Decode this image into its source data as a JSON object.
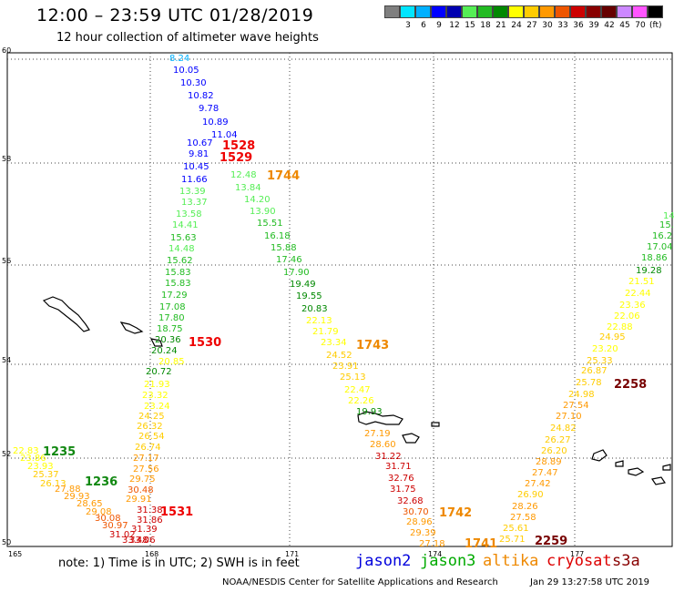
{
  "header": {
    "title": "12:00 – 23:59 UTC 01/28/2019",
    "subtitle": "12 hour collection of altimeter wave heights"
  },
  "legend": {
    "colors": [
      "#7f7f7f",
      "#00e5ff",
      "#00b0ff",
      "#0000ff",
      "#0000b0",
      "#55ee55",
      "#22bb22",
      "#008800",
      "#ffff00",
      "#ffcc00",
      "#ff9900",
      "#ee5500",
      "#cc0000",
      "#880000",
      "#660000",
      "#cc88ff",
      "#ff55ff",
      "#000000"
    ],
    "ticks": [
      "3",
      "6",
      "9",
      "12",
      "15",
      "18",
      "21",
      "24",
      "27",
      "30",
      "33",
      "36",
      "39",
      "42",
      "45",
      "70"
    ],
    "unit": "(ft)"
  },
  "map": {
    "lon_labels": [
      "165",
      "168",
      "171",
      "174",
      "177"
    ],
    "lat_labels": [
      "50",
      "52",
      "54",
      "56",
      "58",
      "60"
    ],
    "icon": "coastline-shapes"
  },
  "points": [
    {
      "t": "8.24",
      "c": "#00b0ff"
    },
    {
      "t": "10.05",
      "c": "#0000ff"
    },
    {
      "t": "10.30",
      "c": "#0000ff"
    },
    {
      "t": "10.82",
      "c": "#0000ff"
    },
    {
      "t": "9.78",
      "c": "#0000ff"
    },
    {
      "t": "10.89",
      "c": "#0000ff"
    },
    {
      "t": "11.04",
      "c": "#0000ff"
    },
    {
      "t": "10.67",
      "c": "#0000ff"
    },
    {
      "t": "9.81",
      "c": "#0000ff"
    },
    {
      "t": "10.45",
      "c": "#0000ff"
    },
    {
      "t": "11.66",
      "c": "#0000ff"
    },
    {
      "t": "13.39",
      "c": "#55ee55"
    },
    {
      "t": "13.37",
      "c": "#55ee55"
    },
    {
      "t": "13.58",
      "c": "#55ee55"
    },
    {
      "t": "14.41",
      "c": "#55ee55"
    },
    {
      "t": "15.63",
      "c": "#22bb22"
    },
    {
      "t": "14.48",
      "c": "#55ee55"
    },
    {
      "t": "15.62",
      "c": "#22bb22"
    },
    {
      "t": "15.83",
      "c": "#22bb22"
    },
    {
      "t": "15.83",
      "c": "#22bb22"
    },
    {
      "t": "17.29",
      "c": "#22bb22"
    },
    {
      "t": "17.08",
      "c": "#22bb22"
    },
    {
      "t": "17.80",
      "c": "#22bb22"
    },
    {
      "t": "18.75",
      "c": "#22bb22"
    },
    {
      "t": "20.36",
      "c": "#008800"
    },
    {
      "t": "20.24",
      "c": "#008800"
    },
    {
      "t": "20.85",
      "c": "#ffff00"
    },
    {
      "t": "20.72",
      "c": "#008800"
    },
    {
      "t": "21.93",
      "c": "#ffff00"
    },
    {
      "t": "23.32",
      "c": "#ffff00"
    },
    {
      "t": "23.24",
      "c": "#ffff00"
    },
    {
      "t": "24.25",
      "c": "#ffcc00"
    },
    {
      "t": "26.32",
      "c": "#ffcc00"
    },
    {
      "t": "26.54",
      "c": "#ffcc00"
    },
    {
      "t": "26.74",
      "c": "#ffcc00"
    },
    {
      "t": "27.17",
      "c": "#ff9900"
    },
    {
      "t": "27.56",
      "c": "#ff9900"
    },
    {
      "t": "29.75",
      "c": "#ff9900"
    },
    {
      "t": "30.48",
      "c": "#ee5500"
    },
    {
      "t": "29.91",
      "c": "#ff9900"
    },
    {
      "t": "31.38",
      "c": "#cc0000"
    },
    {
      "t": "31.86",
      "c": "#cc0000"
    },
    {
      "t": "31.39",
      "c": "#cc0000"
    },
    {
      "t": "33.48",
      "c": "#cc0000"
    },
    {
      "t": "33.06",
      "c": "#cc0000"
    },
    {
      "t": "12.48",
      "c": "#55ee55"
    },
    {
      "t": "13.84",
      "c": "#55ee55"
    },
    {
      "t": "14.20",
      "c": "#55ee55"
    },
    {
      "t": "13.90",
      "c": "#55ee55"
    },
    {
      "t": "15.51",
      "c": "#22bb22"
    },
    {
      "t": "16.18",
      "c": "#22bb22"
    },
    {
      "t": "15.88",
      "c": "#22bb22"
    },
    {
      "t": "17.46",
      "c": "#22bb22"
    },
    {
      "t": "17.90",
      "c": "#22bb22"
    },
    {
      "t": "19.49",
      "c": "#008800"
    },
    {
      "t": "19.55",
      "c": "#008800"
    },
    {
      "t": "20.83",
      "c": "#008800"
    },
    {
      "t": "22.13",
      "c": "#ffff00"
    },
    {
      "t": "21.79",
      "c": "#ffff00"
    },
    {
      "t": "23.34",
      "c": "#ffff00"
    },
    {
      "t": "24.52",
      "c": "#ffcc00"
    },
    {
      "t": "23.91",
      "c": "#ffcc00"
    },
    {
      "t": "25.13",
      "c": "#ffcc00"
    },
    {
      "t": "22.47",
      "c": "#ffff00"
    },
    {
      "t": "22.26",
      "c": "#ffff00"
    },
    {
      "t": "19.93",
      "c": "#008800"
    },
    {
      "t": "27.19",
      "c": "#ff9900"
    },
    {
      "t": "28.60",
      "c": "#ff9900"
    },
    {
      "t": "31.22",
      "c": "#cc0000"
    },
    {
      "t": "31.71",
      "c": "#cc0000"
    },
    {
      "t": "32.76",
      "c": "#cc0000"
    },
    {
      "t": "31.75",
      "c": "#cc0000"
    },
    {
      "t": "32.68",
      "c": "#cc0000"
    },
    {
      "t": "30.70",
      "c": "#ee5500"
    },
    {
      "t": "28.96",
      "c": "#ff9900"
    },
    {
      "t": "29.39",
      "c": "#ff9900"
    },
    {
      "t": "27.18",
      "c": "#ff9900"
    },
    {
      "t": "22.83",
      "c": "#ffff00"
    },
    {
      "t": "23.86",
      "c": "#ffff00"
    },
    {
      "t": "23.93",
      "c": "#ffff00"
    },
    {
      "t": "25.37",
      "c": "#ffcc00"
    },
    {
      "t": "26.13",
      "c": "#ffcc00"
    },
    {
      "t": "27.88",
      "c": "#ff9900"
    },
    {
      "t": "29.93",
      "c": "#ff9900"
    },
    {
      "t": "28.65",
      "c": "#ff9900"
    },
    {
      "t": "29.08",
      "c": "#ff9900"
    },
    {
      "t": "30.08",
      "c": "#ee5500"
    },
    {
      "t": "30.97",
      "c": "#ee5500"
    },
    {
      "t": "31.02",
      "c": "#cc0000"
    },
    {
      "t": "14",
      "c": "#55ee55"
    },
    {
      "t": "15.",
      "c": "#22bb22"
    },
    {
      "t": "16.2",
      "c": "#22bb22"
    },
    {
      "t": "17.04",
      "c": "#22bb22"
    },
    {
      "t": "18.86",
      "c": "#22bb22"
    },
    {
      "t": "19.28",
      "c": "#008800"
    },
    {
      "t": "21.51",
      "c": "#ffff00"
    },
    {
      "t": "22.44",
      "c": "#ffff00"
    },
    {
      "t": "23.36",
      "c": "#ffff00"
    },
    {
      "t": "22.06",
      "c": "#ffff00"
    },
    {
      "t": "22.88",
      "c": "#ffff00"
    },
    {
      "t": "24.95",
      "c": "#ffcc00"
    },
    {
      "t": "23.20",
      "c": "#ffff00"
    },
    {
      "t": "25.33",
      "c": "#ffcc00"
    },
    {
      "t": "26.87",
      "c": "#ffcc00"
    },
    {
      "t": "25.78",
      "c": "#ffcc00"
    },
    {
      "t": "24.98",
      "c": "#ffcc00"
    },
    {
      "t": "27.54",
      "c": "#ff9900"
    },
    {
      "t": "27.10",
      "c": "#ff9900"
    },
    {
      "t": "24.82",
      "c": "#ffcc00"
    },
    {
      "t": "26.27",
      "c": "#ffcc00"
    },
    {
      "t": "26.20",
      "c": "#ffcc00"
    },
    {
      "t": "28.89",
      "c": "#ff9900"
    },
    {
      "t": "27.47",
      "c": "#ff9900"
    },
    {
      "t": "27.42",
      "c": "#ff9900"
    },
    {
      "t": "26.90",
      "c": "#ffcc00"
    },
    {
      "t": "28.26",
      "c": "#ff9900"
    },
    {
      "t": "27.58",
      "c": "#ff9900"
    },
    {
      "t": "25.61",
      "c": "#ffcc00"
    },
    {
      "t": "25.71",
      "c": "#ffcc00"
    },
    {
      "t": "24.63",
      "c": "#ffcc00"
    },
    {
      "t": "22.59",
      "c": "#ffff00"
    }
  ],
  "times": [
    {
      "t": "1528",
      "c": "#ee0000"
    },
    {
      "t": "1529",
      "c": "#ee0000"
    },
    {
      "t": "1744",
      "c": "#ee8800"
    },
    {
      "t": "1530",
      "c": "#ee0000"
    },
    {
      "t": "1743",
      "c": "#ee8800"
    },
    {
      "t": "1531",
      "c": "#ee0000"
    },
    {
      "t": "1742",
      "c": "#ee8800"
    },
    {
      "t": "1741",
      "c": "#ee8800"
    },
    {
      "t": "1235",
      "c": "#118811"
    },
    {
      "t": "1236",
      "c": "#118811"
    },
    {
      "t": "2258",
      "c": "#770000"
    },
    {
      "t": "2259",
      "c": "#770000"
    }
  ],
  "footer": {
    "note": "note: 1) Time is in UTC; 2) SWH is in feet",
    "satellites": [
      {
        "name": "jason2",
        "color": "#0000dd"
      },
      {
        "name": "jason3",
        "color": "#00aa00"
      },
      {
        "name": "altika",
        "color": "#ee8800"
      },
      {
        "name": "cryosat",
        "color": "#dd0000"
      },
      {
        "name": "s3a",
        "color": "#880000"
      }
    ],
    "credit": "NOAA/NESDIS Center for Satellite Applications and Research",
    "timestamp": "Jan 29 13:27:58 UTC 2019"
  }
}
